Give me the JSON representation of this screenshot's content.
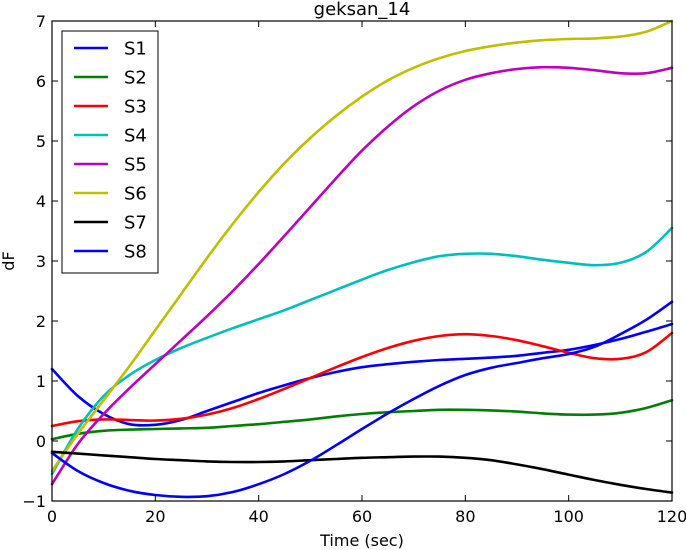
{
  "chart_data": {
    "type": "line",
    "title": "geksan_14",
    "xlabel": "Time (sec)",
    "ylabel": "dF",
    "xlim": [
      0,
      120
    ],
    "ylim": [
      -1,
      7
    ],
    "x_ticks": [
      0,
      20,
      40,
      60,
      80,
      100,
      120
    ],
    "y_ticks": [
      -1,
      0,
      1,
      2,
      3,
      4,
      5,
      6,
      7
    ],
    "y_tick_labels": [
      "−1",
      "0",
      "1",
      "2",
      "3",
      "4",
      "5",
      "6",
      "7"
    ],
    "grid": false,
    "legend_position": "top-left",
    "x": [
      0,
      5,
      10,
      15,
      20,
      25,
      30,
      35,
      40,
      45,
      50,
      55,
      60,
      65,
      70,
      75,
      80,
      85,
      90,
      95,
      100,
      105,
      110,
      115,
      120
    ],
    "series": [
      {
        "name": "S1",
        "color": "#0000ff",
        "values": [
          1.2,
          0.75,
          0.45,
          0.28,
          0.27,
          0.35,
          0.5,
          0.65,
          0.8,
          0.93,
          1.05,
          1.15,
          1.23,
          1.28,
          1.32,
          1.35,
          1.37,
          1.39,
          1.42,
          1.47,
          1.52,
          1.6,
          1.7,
          1.82,
          1.95
        ]
      },
      {
        "name": "S2",
        "color": "#008000",
        "values": [
          0.03,
          0.12,
          0.17,
          0.19,
          0.2,
          0.21,
          0.22,
          0.25,
          0.28,
          0.32,
          0.36,
          0.41,
          0.45,
          0.48,
          0.5,
          0.52,
          0.52,
          0.51,
          0.49,
          0.46,
          0.44,
          0.44,
          0.47,
          0.55,
          0.68
        ]
      },
      {
        "name": "S3",
        "color": "#ff0000",
        "values": [
          0.25,
          0.33,
          0.36,
          0.35,
          0.34,
          0.37,
          0.44,
          0.55,
          0.7,
          0.87,
          1.05,
          1.23,
          1.4,
          1.55,
          1.67,
          1.75,
          1.78,
          1.75,
          1.68,
          1.58,
          1.47,
          1.38,
          1.37,
          1.48,
          1.8
        ]
      },
      {
        "name": "S4",
        "color": "#00bfbf",
        "values": [
          -0.55,
          0.2,
          0.75,
          1.1,
          1.35,
          1.55,
          1.72,
          1.88,
          2.03,
          2.18,
          2.35,
          2.52,
          2.69,
          2.85,
          2.98,
          3.08,
          3.12,
          3.12,
          3.08,
          3.02,
          2.97,
          2.93,
          2.97,
          3.15,
          3.55
        ]
      },
      {
        "name": "S5",
        "color": "#bf00bf",
        "values": [
          -0.72,
          -0.05,
          0.45,
          0.88,
          1.28,
          1.68,
          2.08,
          2.5,
          2.95,
          3.42,
          3.9,
          4.38,
          4.84,
          5.24,
          5.58,
          5.84,
          6.02,
          6.13,
          6.2,
          6.23,
          6.22,
          6.18,
          6.13,
          6.13,
          6.22
        ]
      },
      {
        "name": "S6",
        "color": "#bfbf00",
        "values": [
          -0.5,
          0.12,
          0.68,
          1.25,
          1.85,
          2.45,
          3.05,
          3.62,
          4.15,
          4.63,
          5.05,
          5.42,
          5.74,
          6.01,
          6.22,
          6.38,
          6.5,
          6.58,
          6.64,
          6.68,
          6.7,
          6.71,
          6.74,
          6.82,
          7.0
        ]
      },
      {
        "name": "S7",
        "color": "#000000",
        "values": [
          -0.18,
          -0.21,
          -0.24,
          -0.27,
          -0.3,
          -0.32,
          -0.34,
          -0.35,
          -0.35,
          -0.34,
          -0.32,
          -0.3,
          -0.28,
          -0.27,
          -0.26,
          -0.26,
          -0.28,
          -0.32,
          -0.39,
          -0.47,
          -0.56,
          -0.65,
          -0.73,
          -0.8,
          -0.86
        ]
      },
      {
        "name": "S8",
        "color": "#0000ff",
        "values": [
          -0.2,
          -0.5,
          -0.7,
          -0.83,
          -0.9,
          -0.93,
          -0.92,
          -0.85,
          -0.72,
          -0.55,
          -0.33,
          -0.07,
          0.2,
          0.46,
          0.7,
          0.92,
          1.1,
          1.22,
          1.3,
          1.38,
          1.45,
          1.57,
          1.78,
          2.02,
          2.32
        ]
      }
    ]
  }
}
